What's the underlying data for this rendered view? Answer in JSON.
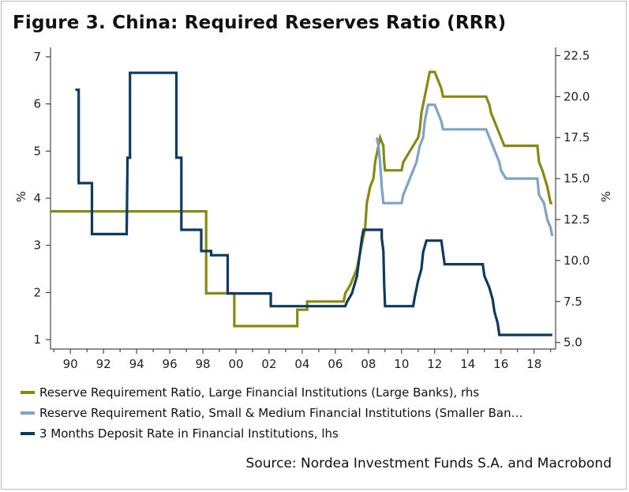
{
  "title": "Figure 3. China: Required Reserves Ratio (RRR)",
  "source": "Source: Nordea Investment Funds S.A. and Macrobond",
  "colors": {
    "large_banks": "#868a10",
    "small_banks": "#7fa3c6",
    "deposit_rate": "#0f3a5f",
    "axis": "#222222"
  },
  "chart_data": {
    "type": "line",
    "xlabel": "",
    "ylabel_left": "%",
    "ylabel_right": "%",
    "x_tick_labels": [
      "90",
      "92",
      "94",
      "96",
      "98",
      "00",
      "02",
      "04",
      "06",
      "08",
      "10",
      "12",
      "14",
      "16",
      "18"
    ],
    "x_tick_years": [
      1990,
      1992,
      1994,
      1996,
      1998,
      2000,
      2002,
      2004,
      2006,
      2008,
      2010,
      2012,
      2014,
      2016,
      2018
    ],
    "xlim": [
      1988.8,
      2019.3
    ],
    "ylim_left": [
      0.8,
      7.2
    ],
    "ylim_right": [
      4.6,
      23.0
    ],
    "yticks_left": [
      "1",
      "2",
      "3",
      "4",
      "5",
      "6",
      "7"
    ],
    "yticks_right": [
      "5.0",
      "7.5",
      "10.0",
      "12.5",
      "15.0",
      "17.5",
      "20.0",
      "22.5"
    ],
    "grid": false,
    "legend_position": "bottom",
    "series": [
      {
        "name": "Reserve Requirement Ratio, Large Financial Institutions (Large Banks), rhs",
        "axis": "right",
        "color": "#868a10",
        "points": [
          [
            1988.8,
            13.0
          ],
          [
            1998.2,
            13.0
          ],
          [
            1998.2,
            8.0
          ],
          [
            1999.9,
            8.0
          ],
          [
            1999.9,
            6.0
          ],
          [
            2003.7,
            6.0
          ],
          [
            2003.7,
            7.0
          ],
          [
            2004.3,
            7.0
          ],
          [
            2004.3,
            7.5
          ],
          [
            2006.5,
            7.5
          ],
          [
            2006.6,
            8.0
          ],
          [
            2006.9,
            8.5
          ],
          [
            2007.1,
            9.0
          ],
          [
            2007.3,
            9.5
          ],
          [
            2007.4,
            10.0
          ],
          [
            2007.5,
            10.5
          ],
          [
            2007.6,
            11.0
          ],
          [
            2007.7,
            11.5
          ],
          [
            2007.8,
            12.0
          ],
          [
            2007.9,
            13.5
          ],
          [
            2008.0,
            14.0
          ],
          [
            2008.1,
            14.5
          ],
          [
            2008.3,
            15.0
          ],
          [
            2008.4,
            16.0
          ],
          [
            2008.5,
            16.5
          ],
          [
            2008.6,
            17.0
          ],
          [
            2008.7,
            17.5
          ],
          [
            2008.9,
            17.0
          ],
          [
            2008.95,
            16.0
          ],
          [
            2009.0,
            15.5
          ],
          [
            2010.0,
            15.5
          ],
          [
            2010.1,
            16.0
          ],
          [
            2010.4,
            16.5
          ],
          [
            2010.7,
            17.0
          ],
          [
            2011.0,
            17.5
          ],
          [
            2011.1,
            18.0
          ],
          [
            2011.2,
            19.0
          ],
          [
            2011.3,
            19.5
          ],
          [
            2011.4,
            20.0
          ],
          [
            2011.5,
            20.5
          ],
          [
            2011.6,
            21.0
          ],
          [
            2011.7,
            21.5
          ],
          [
            2012.0,
            21.5
          ],
          [
            2012.2,
            21.0
          ],
          [
            2012.4,
            20.5
          ],
          [
            2012.5,
            20.0
          ],
          [
            2015.1,
            20.0
          ],
          [
            2015.3,
            19.5
          ],
          [
            2015.4,
            19.0
          ],
          [
            2015.6,
            18.5
          ],
          [
            2015.8,
            18.0
          ],
          [
            2016.0,
            17.5
          ],
          [
            2016.2,
            17.0
          ],
          [
            2018.2,
            17.0
          ],
          [
            2018.3,
            16.0
          ],
          [
            2018.5,
            15.5
          ],
          [
            2018.8,
            14.5
          ],
          [
            2019.0,
            13.5
          ],
          [
            2019.1,
            13.5
          ]
        ]
      },
      {
        "name": "Reserve Requirement Ratio, Small & Medium Financial Institutions (Smaller Ban…",
        "axis": "right",
        "color": "#7fa3c6",
        "points": [
          [
            2008.5,
            17.5
          ],
          [
            2008.6,
            17.0
          ],
          [
            2008.7,
            16.0
          ],
          [
            2008.8,
            14.5
          ],
          [
            2008.9,
            13.5
          ],
          [
            2010.0,
            13.5
          ],
          [
            2010.1,
            14.0
          ],
          [
            2010.3,
            14.5
          ],
          [
            2010.5,
            15.0
          ],
          [
            2010.7,
            15.5
          ],
          [
            2010.9,
            16.0
          ],
          [
            2011.0,
            16.5
          ],
          [
            2011.1,
            17.0
          ],
          [
            2011.3,
            17.5
          ],
          [
            2011.4,
            18.5
          ],
          [
            2011.5,
            19.0
          ],
          [
            2011.6,
            19.5
          ],
          [
            2012.0,
            19.5
          ],
          [
            2012.2,
            19.0
          ],
          [
            2012.4,
            18.5
          ],
          [
            2012.5,
            18.0
          ],
          [
            2015.1,
            18.0
          ],
          [
            2015.3,
            17.5
          ],
          [
            2015.5,
            17.0
          ],
          [
            2015.7,
            16.5
          ],
          [
            2015.9,
            16.0
          ],
          [
            2016.0,
            15.5
          ],
          [
            2016.3,
            15.0
          ],
          [
            2018.2,
            15.0
          ],
          [
            2018.3,
            14.0
          ],
          [
            2018.6,
            13.5
          ],
          [
            2018.8,
            12.5
          ],
          [
            2019.0,
            12.0
          ],
          [
            2019.1,
            11.5
          ]
        ]
      },
      {
        "name": "3 Months Deposit Rate in Financial Institutions, lhs",
        "axis": "left",
        "color": "#0f3a5f",
        "points": [
          [
            1990.3,
            6.3
          ],
          [
            1990.5,
            6.3
          ],
          [
            1990.5,
            4.32
          ],
          [
            1991.3,
            4.32
          ],
          [
            1991.3,
            3.24
          ],
          [
            1993.4,
            3.24
          ],
          [
            1993.45,
            4.86
          ],
          [
            1993.6,
            4.86
          ],
          [
            1993.6,
            6.66
          ],
          [
            1996.4,
            6.66
          ],
          [
            1996.4,
            4.86
          ],
          [
            1996.7,
            4.86
          ],
          [
            1996.7,
            3.33
          ],
          [
            1997.9,
            3.33
          ],
          [
            1997.9,
            2.88
          ],
          [
            1998.5,
            2.88
          ],
          [
            1998.5,
            2.79
          ],
          [
            1999.5,
            2.79
          ],
          [
            1999.5,
            1.98
          ],
          [
            2002.1,
            1.98
          ],
          [
            2002.1,
            1.71
          ],
          [
            2006.6,
            1.71
          ],
          [
            2006.7,
            1.8
          ],
          [
            2007.0,
            1.98
          ],
          [
            2007.3,
            2.34
          ],
          [
            2007.4,
            2.61
          ],
          [
            2007.5,
            2.88
          ],
          [
            2007.6,
            3.15
          ],
          [
            2007.7,
            3.33
          ],
          [
            2008.8,
            3.33
          ],
          [
            2008.8,
            3.15
          ],
          [
            2008.9,
            2.88
          ],
          [
            2008.95,
            2.16
          ],
          [
            2009.0,
            1.71
          ],
          [
            2010.7,
            1.71
          ],
          [
            2010.8,
            1.91
          ],
          [
            2011.0,
            2.25
          ],
          [
            2011.2,
            2.5
          ],
          [
            2011.3,
            2.85
          ],
          [
            2011.5,
            3.1
          ],
          [
            2012.4,
            3.1
          ],
          [
            2012.5,
            2.85
          ],
          [
            2012.6,
            2.6
          ],
          [
            2014.9,
            2.6
          ],
          [
            2015.0,
            2.35
          ],
          [
            2015.3,
            2.1
          ],
          [
            2015.5,
            1.85
          ],
          [
            2015.6,
            1.6
          ],
          [
            2015.8,
            1.35
          ],
          [
            2015.9,
            1.1
          ],
          [
            2019.1,
            1.1
          ]
        ]
      }
    ]
  }
}
